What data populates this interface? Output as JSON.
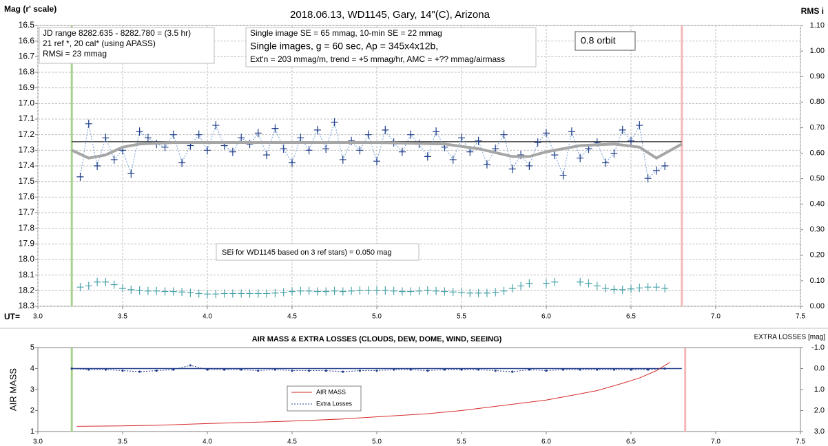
{
  "chart_data": [
    {
      "type": "line",
      "title": "2018.06.13,  WD1145, Gary, 14\"(C), Arizona",
      "ylabel": "Mag (r' scale)",
      "y2label": "RMS i",
      "xlabel": "UT=",
      "xlim": [
        3.0,
        7.5
      ],
      "xticks": [
        {
          "value": 3,
          "label": "3.0"
        },
        3.5,
        {
          "value": 4,
          "label": "4.0"
        },
        4.5,
        {
          "value": 5,
          "label": "5.0"
        },
        5.5,
        {
          "value": 6,
          "label": "6.0"
        },
        6.5,
        {
          "value": 7,
          "label": "7.0"
        },
        7.5
      ],
      "ylim": [
        18.3,
        16.5
      ],
      "yticks": [
        16.5,
        16.6,
        16.7,
        16.8,
        16.9,
        {
          "value": 17,
          "label": "17.0"
        },
        17.1,
        17.2,
        17.3,
        17.4,
        17.5,
        17.6,
        17.7,
        17.8,
        17.9,
        {
          "value": 18,
          "label": "18.0"
        },
        18.1,
        18.2,
        18.3
      ],
      "y2lim": [
        0,
        1.1
      ],
      "y2ticks": [
        {
          "value": 0,
          "label": "0.00"
        },
        {
          "value": 0.1,
          "label": "0.10"
        },
        {
          "value": 0.2,
          "label": "0.20"
        },
        {
          "value": 0.3,
          "label": "0.30"
        },
        {
          "value": 0.4,
          "label": "0.40"
        },
        {
          "value": 0.5,
          "label": "0.50"
        },
        {
          "value": 0.6,
          "label": "0.60"
        },
        {
          "value": 0.7,
          "label": "0.70"
        },
        {
          "value": 0.8,
          "label": "0.80"
        },
        {
          "value": 0.9,
          "label": "0.90"
        },
        {
          "value": 1,
          "label": "1.00"
        },
        {
          "value": 1.1,
          "label": "1.10"
        }
      ],
      "grid": true,
      "vertical_lines": [
        {
          "value": 3.2,
          "color": "#a9d18e"
        },
        {
          "value": 6.8,
          "color": "#f4b6b6"
        }
      ],
      "reference_lines": [
        {
          "value": 17.245,
          "x": [
            3.2,
            6.8
          ],
          "color": "#404040"
        }
      ],
      "annotations": [
        {
          "lines": [
            "JD range  8282.635  - 8282.780  = (3.5 hr)",
            "21 ref *, 20 cal* (using APASS)",
            "RMSi = 23 mmag"
          ]
        },
        {
          "lines": [
            "Single image SE = 65 mmag, 10-min SE = 22 mmag",
            "Single images, g = 60 sec, Ap = 345x4x12b,",
            "Ext'n = 203 mmag/m, trend = +5 mmag/hr, AMC = +?? mmag/airmass"
          ]
        },
        {
          "lines": [
            "0.8 orbit"
          ]
        },
        {
          "lines": [
            "SEi for WD1145 based on 3 ref stars) = 0.050 mag"
          ]
        }
      ],
      "series": [
        {
          "name": "WD1145",
          "color": "#1f3c88",
          "marker": "plus",
          "dash": true,
          "line_color": "#6f9fd8",
          "line_width": 1,
          "x": [
            3.25,
            3.3,
            3.35,
            3.4,
            3.45,
            3.5,
            3.55,
            3.6,
            3.65,
            3.7,
            3.75,
            3.8,
            3.85,
            3.9,
            3.95,
            4.0,
            4.05,
            4.1,
            4.15,
            4.2,
            4.25,
            4.3,
            4.35,
            4.4,
            4.45,
            4.5,
            4.55,
            4.6,
            4.65,
            4.7,
            4.75,
            4.8,
            4.85,
            4.9,
            4.95,
            5.0,
            5.05,
            5.1,
            5.15,
            5.2,
            5.25,
            5.3,
            5.35,
            5.4,
            5.45,
            5.5,
            5.55,
            5.6,
            5.65,
            5.7,
            5.75,
            5.8,
            5.85,
            5.9,
            5.95,
            6.0,
            6.05,
            6.1,
            6.15,
            6.2,
            6.25,
            6.3,
            6.35,
            6.4,
            6.45,
            6.5,
            6.55,
            6.6,
            6.65,
            6.7
          ],
          "values": [
            17.47,
            17.13,
            17.4,
            17.22,
            17.36,
            17.3,
            17.45,
            17.18,
            17.22,
            17.26,
            17.28,
            17.2,
            17.38,
            17.27,
            17.2,
            17.3,
            17.14,
            17.27,
            17.31,
            17.22,
            17.26,
            17.19,
            17.33,
            17.16,
            17.29,
            17.38,
            17.22,
            17.3,
            17.17,
            17.29,
            17.12,
            17.36,
            17.24,
            17.3,
            17.2,
            17.37,
            17.17,
            17.25,
            17.31,
            17.2,
            17.26,
            17.34,
            17.18,
            17.28,
            17.36,
            17.22,
            17.31,
            17.24,
            17.39,
            17.29,
            17.2,
            17.42,
            17.33,
            17.4,
            17.25,
            17.19,
            17.33,
            17.46,
            17.18,
            17.35,
            17.29,
            17.25,
            17.38,
            17.32,
            17.17,
            17.24,
            17.14,
            17.48,
            17.43,
            17.4
          ]
        },
        {
          "name": "trend",
          "color": "#a6a6a6",
          "line_width": 4,
          "x": [
            3.2,
            3.3,
            3.4,
            3.5,
            3.6,
            3.8,
            4.0,
            4.5,
            5.0,
            5.4,
            5.6,
            5.8,
            5.9,
            6.0,
            6.2,
            6.4,
            6.55,
            6.65,
            6.8
          ],
          "values": [
            17.3,
            17.35,
            17.33,
            17.28,
            17.26,
            17.25,
            17.25,
            17.25,
            17.25,
            17.26,
            17.29,
            17.34,
            17.34,
            17.31,
            17.27,
            17.26,
            17.28,
            17.35,
            17.26
          ]
        },
        {
          "name": "RMSi",
          "color": "#4aa3a8",
          "marker": "plus",
          "axis": "y2",
          "x": [
            3.25,
            3.3,
            3.35,
            3.4,
            3.45,
            3.5,
            3.55,
            3.6,
            3.65,
            3.7,
            3.75,
            3.8,
            3.85,
            3.9,
            3.95,
            4.0,
            4.05,
            4.1,
            4.15,
            4.2,
            4.25,
            4.3,
            4.35,
            4.4,
            4.45,
            4.5,
            4.55,
            4.6,
            4.65,
            4.7,
            4.75,
            4.8,
            4.85,
            4.9,
            4.95,
            5.0,
            5.05,
            5.1,
            5.15,
            5.2,
            5.25,
            5.3,
            5.35,
            5.4,
            5.45,
            5.5,
            5.55,
            5.6,
            5.65,
            5.7,
            5.75,
            5.8,
            5.85,
            5.9,
            5.95,
            6.0,
            6.05,
            6.1,
            6.15,
            6.2,
            6.25,
            6.3,
            6.35,
            6.4,
            6.45,
            6.5,
            6.55,
            6.6,
            6.65,
            6.7
          ],
          "values": [
            0.075,
            0.08,
            0.095,
            0.095,
            0.085,
            0.07,
            0.065,
            0.062,
            0.06,
            0.06,
            0.058,
            0.058,
            0.056,
            0.053,
            0.05,
            0.048,
            0.048,
            0.05,
            0.05,
            0.05,
            0.05,
            0.05,
            0.05,
            0.052,
            0.055,
            0.058,
            0.06,
            0.06,
            0.058,
            0.058,
            0.06,
            0.058,
            0.06,
            0.062,
            0.062,
            0.062,
            0.062,
            0.06,
            0.058,
            0.058,
            0.06,
            0.062,
            0.06,
            0.058,
            0.056,
            0.054,
            0.052,
            0.052,
            0.052,
            0.055,
            0.06,
            0.07,
            0.08,
            0.09,
            null,
            0.09,
            0.095,
            null,
            null,
            0.095,
            0.09,
            0.08,
            0.07,
            0.066,
            0.065,
            0.068,
            0.072,
            0.075,
            0.075,
            0.07
          ]
        }
      ]
    },
    {
      "type": "line",
      "title": "AIR MASS & EXTRA LOSSES (CLOUDS, DEW, DOME, WIND, SEEING)",
      "ylabel": "AIR MASS",
      "y2label": "EXTRA LOSSES [mag]",
      "xlim": [
        3.0,
        7.5
      ],
      "xticks": [
        {
          "value": 3,
          "label": "3.0"
        },
        3.5,
        {
          "value": 4,
          "label": "4.0"
        },
        4.5,
        {
          "value": 5,
          "label": "5.0"
        },
        5.5,
        {
          "value": 6,
          "label": "6.0"
        },
        6.5,
        {
          "value": 7,
          "label": "7.0"
        },
        7.5
      ],
      "ylim": [
        1,
        5
      ],
      "yticks": [
        1,
        2,
        3,
        4,
        5
      ],
      "y2lim": [
        3,
        -1
      ],
      "y2ticks": [
        {
          "value": -1,
          "label": "-1.0"
        },
        {
          "value": 0,
          "label": "0.0"
        },
        {
          "value": 1,
          "label": "1.0"
        },
        {
          "value": 2,
          "label": "2.0"
        },
        {
          "value": 3,
          "label": "3.0"
        }
      ],
      "grid": false,
      "legend": true,
      "vertical_lines": [
        {
          "value": 3.2,
          "color": "#a9d18e"
        },
        {
          "value": 6.82,
          "color": "#f4b6b6"
        }
      ],
      "reference_lines": [
        {
          "value": 0,
          "axis": "y2",
          "x": [
            3.2,
            6.8
          ],
          "color": "#1f3c88"
        }
      ],
      "series": [
        {
          "name": "AIR MASS",
          "color": "#d62b2b",
          "line_width": 1,
          "x": [
            3.23,
            3.5,
            3.7,
            4.0,
            4.3,
            4.5,
            4.8,
            5.0,
            5.3,
            5.5,
            5.8,
            6.0,
            6.2,
            6.3,
            6.45,
            6.55,
            6.65,
            6.73
          ],
          "values": [
            1.25,
            1.27,
            1.3,
            1.38,
            1.45,
            1.5,
            1.6,
            1.7,
            1.85,
            2.0,
            2.3,
            2.5,
            2.8,
            2.95,
            3.3,
            3.55,
            3.9,
            4.3
          ]
        },
        {
          "name": "Extra Losses",
          "color": "#1f3c88",
          "marker": "dot",
          "dash": true,
          "line_width": 1,
          "axis": "y2",
          "x": [
            3.2,
            3.3,
            3.4,
            3.5,
            3.6,
            3.7,
            3.8,
            3.9,
            4.0,
            4.1,
            4.2,
            4.3,
            4.4,
            4.5,
            4.6,
            4.7,
            4.8,
            4.9,
            5.0,
            5.1,
            5.2,
            5.3,
            5.4,
            5.5,
            5.6,
            5.7,
            5.8,
            5.9,
            6.0,
            6.1,
            6.2,
            6.3,
            6.4,
            6.5,
            6.6,
            6.7
          ],
          "values": [
            0.0,
            0.05,
            0.05,
            0.1,
            0.15,
            0.1,
            0.05,
            -0.15,
            0.05,
            0.05,
            0.05,
            0.1,
            0.05,
            0.1,
            0.1,
            0.1,
            0.15,
            0.1,
            0.1,
            0.05,
            0.05,
            0.1,
            0.05,
            0.05,
            0.05,
            0.1,
            0.15,
            0.05,
            0.1,
            0.05,
            0.05,
            0.05,
            0.05,
            0.05,
            0.05,
            0.0
          ]
        }
      ]
    }
  ]
}
